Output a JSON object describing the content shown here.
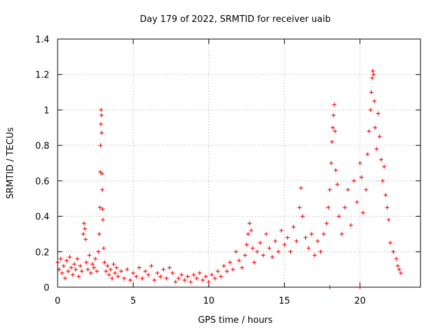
{
  "chart_data": {
    "type": "scatter",
    "title": "Day 179 of 2022, SRMTID for receiver uaib",
    "xlabel": "GPS time / hours",
    "ylabel": "SRMTID / TECUs",
    "xlim": [
      0,
      24
    ],
    "ylim": [
      0,
      1.4
    ],
    "xticks": [
      0,
      5,
      10,
      15,
      20
    ],
    "xtick_labels": [
      "0",
      "5",
      "10",
      "15",
      "20"
    ],
    "yticks": [
      0,
      0.2,
      0.4,
      0.6,
      0.8,
      1.0,
      1.2,
      1.4
    ],
    "ytick_labels": [
      "0",
      "0.2",
      "0.4",
      "0.6",
      "0.8",
      "1",
      "1.2",
      "1.4"
    ],
    "grid": true,
    "marker": "+",
    "marker_color": "#ff0000",
    "series": [
      {
        "name": "SRMTID",
        "points": [
          [
            0.0,
            0.14
          ],
          [
            0.1,
            0.1
          ],
          [
            0.2,
            0.16
          ],
          [
            0.3,
            0.08
          ],
          [
            0.4,
            0.12
          ],
          [
            0.5,
            0.05
          ],
          [
            0.6,
            0.15
          ],
          [
            0.7,
            0.09
          ],
          [
            0.8,
            0.17
          ],
          [
            0.9,
            0.11
          ],
          [
            1.0,
            0.07
          ],
          [
            1.1,
            0.13
          ],
          [
            1.2,
            0.1
          ],
          [
            1.3,
            0.16
          ],
          [
            1.4,
            0.06
          ],
          [
            1.5,
            0.12
          ],
          [
            1.6,
            0.09
          ],
          [
            1.7,
            0.3
          ],
          [
            1.75,
            0.36
          ],
          [
            1.8,
            0.33
          ],
          [
            1.85,
            0.27
          ],
          [
            1.9,
            0.14
          ],
          [
            2.0,
            0.1
          ],
          [
            2.1,
            0.18
          ],
          [
            2.2,
            0.08
          ],
          [
            2.3,
            0.13
          ],
          [
            2.4,
            0.11
          ],
          [
            2.5,
            0.16
          ],
          [
            2.6,
            0.09
          ],
          [
            2.7,
            0.2
          ],
          [
            2.75,
            0.3
          ],
          [
            2.8,
            0.45
          ],
          [
            2.82,
            0.65
          ],
          [
            2.84,
            0.8
          ],
          [
            2.86,
            0.92
          ],
          [
            2.88,
            1.0
          ],
          [
            2.9,
            0.97
          ],
          [
            2.92,
            0.87
          ],
          [
            2.94,
            0.64
          ],
          [
            2.96,
            0.55
          ],
          [
            2.98,
            0.44
          ],
          [
            3.0,
            0.38
          ],
          [
            3.05,
            0.22
          ],
          [
            3.1,
            0.14
          ],
          [
            3.2,
            0.09
          ],
          [
            3.3,
            0.12
          ],
          [
            3.4,
            0.07
          ],
          [
            3.5,
            0.1
          ],
          [
            3.6,
            0.05
          ],
          [
            3.7,
            0.13
          ],
          [
            3.8,
            0.08
          ],
          [
            3.9,
            0.11
          ],
          [
            4.0,
            0.06
          ],
          [
            4.2,
            0.09
          ],
          [
            4.4,
            0.05
          ],
          [
            4.6,
            0.1
          ],
          [
            4.8,
            0.04
          ],
          [
            5.0,
            0.08
          ],
          [
            5.2,
            0.06
          ],
          [
            5.4,
            0.11
          ],
          [
            5.6,
            0.05
          ],
          [
            5.8,
            0.09
          ],
          [
            6.0,
            0.07
          ],
          [
            6.2,
            0.12
          ],
          [
            6.4,
            0.04
          ],
          [
            6.6,
            0.08
          ],
          [
            6.8,
            0.06
          ],
          [
            7.0,
            0.1
          ],
          [
            7.2,
            0.05
          ],
          [
            7.4,
            0.11
          ],
          [
            7.6,
            0.08
          ],
          [
            7.8,
            0.03
          ],
          [
            8.0,
            0.05
          ],
          [
            8.2,
            0.07
          ],
          [
            8.4,
            0.04
          ],
          [
            8.6,
            0.06
          ],
          [
            8.8,
            0.03
          ],
          [
            9.0,
            0.07
          ],
          [
            9.2,
            0.05
          ],
          [
            9.4,
            0.08
          ],
          [
            9.6,
            0.04
          ],
          [
            9.8,
            0.06
          ],
          [
            10.0,
            0.03
          ],
          [
            10.2,
            0.07
          ],
          [
            10.4,
            0.05
          ],
          [
            10.6,
            0.09
          ],
          [
            10.8,
            0.06
          ],
          [
            11.0,
            0.12
          ],
          [
            11.2,
            0.09
          ],
          [
            11.4,
            0.14
          ],
          [
            11.6,
            0.1
          ],
          [
            11.8,
            0.2
          ],
          [
            12.0,
            0.15
          ],
          [
            12.2,
            0.11
          ],
          [
            12.4,
            0.18
          ],
          [
            12.5,
            0.24
          ],
          [
            12.6,
            0.3
          ],
          [
            12.7,
            0.36
          ],
          [
            12.8,
            0.32
          ],
          [
            12.9,
            0.22
          ],
          [
            13.0,
            0.14
          ],
          [
            13.2,
            0.2
          ],
          [
            13.4,
            0.25
          ],
          [
            13.6,
            0.18
          ],
          [
            13.8,
            0.3
          ],
          [
            14.0,
            0.22
          ],
          [
            14.2,
            0.17
          ],
          [
            14.4,
            0.26
          ],
          [
            14.6,
            0.2
          ],
          [
            14.8,
            0.32
          ],
          [
            15.0,
            0.24
          ],
          [
            15.2,
            0.28
          ],
          [
            15.4,
            0.2
          ],
          [
            15.6,
            0.34
          ],
          [
            15.8,
            0.26
          ],
          [
            16.0,
            0.45
          ],
          [
            16.1,
            0.56
          ],
          [
            16.2,
            0.4
          ],
          [
            16.4,
            0.28
          ],
          [
            16.6,
            0.22
          ],
          [
            16.8,
            0.3
          ],
          [
            17.0,
            0.18
          ],
          [
            17.2,
            0.26
          ],
          [
            17.4,
            0.2
          ],
          [
            17.6,
            0.3
          ],
          [
            17.8,
            0.36
          ],
          [
            17.9,
            0.45
          ],
          [
            18.0,
            0.55
          ],
          [
            18.1,
            0.7
          ],
          [
            18.15,
            0.82
          ],
          [
            18.2,
            0.9
          ],
          [
            18.25,
            0.97
          ],
          [
            18.3,
            1.03
          ],
          [
            18.35,
            0.88
          ],
          [
            18.4,
            0.66
          ],
          [
            18.5,
            0.58
          ],
          [
            18.6,
            0.4
          ],
          [
            18.8,
            0.3
          ],
          [
            19.0,
            0.45
          ],
          [
            19.2,
            0.55
          ],
          [
            19.4,
            0.35
          ],
          [
            19.6,
            0.6
          ],
          [
            19.8,
            0.48
          ],
          [
            20.0,
            0.7
          ],
          [
            20.1,
            0.62
          ],
          [
            20.2,
            0.42
          ],
          [
            20.4,
            0.55
          ],
          [
            20.5,
            0.75
          ],
          [
            20.6,
            0.88
          ],
          [
            20.7,
            1.0
          ],
          [
            20.75,
            1.1
          ],
          [
            20.8,
            1.18
          ],
          [
            20.85,
            1.22
          ],
          [
            20.9,
            1.2
          ],
          [
            20.95,
            1.05
          ],
          [
            21.0,
            0.9
          ],
          [
            21.1,
            0.78
          ],
          [
            21.2,
            0.98
          ],
          [
            21.3,
            0.85
          ],
          [
            21.4,
            0.72
          ],
          [
            21.5,
            0.6
          ],
          [
            21.6,
            0.68
          ],
          [
            21.7,
            0.52
          ],
          [
            21.8,
            0.45
          ],
          [
            21.9,
            0.38
          ],
          [
            22.0,
            0.25
          ],
          [
            22.2,
            0.2
          ],
          [
            22.4,
            0.16
          ],
          [
            22.5,
            0.12
          ],
          [
            22.6,
            0.1
          ],
          [
            22.7,
            0.08
          ],
          [
            18.0,
            0.0
          ],
          [
            20.0,
            0.0
          ]
        ]
      }
    ]
  }
}
